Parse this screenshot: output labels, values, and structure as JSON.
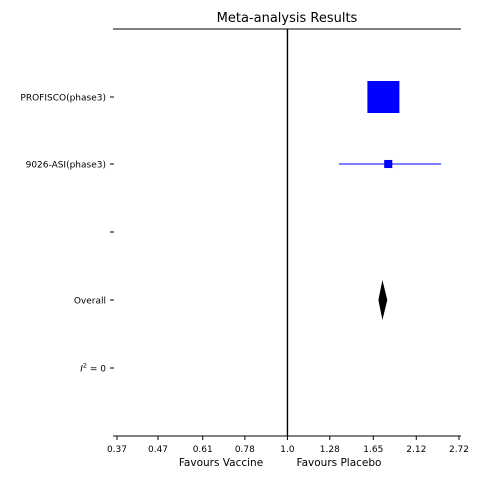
{
  "chart_data": {
    "type": "forest",
    "title": "Meta-analysis Results",
    "x_scale": "log",
    "xlim": [
      0.37,
      2.72
    ],
    "x_ticks": [
      0.37,
      0.47,
      0.61,
      0.78,
      1.0,
      1.28,
      1.65,
      2.12,
      2.72
    ],
    "x_tick_labels": [
      "0.37",
      "0.47",
      "0.61",
      "0.78",
      "1.0",
      "1.28",
      "1.65",
      "2.12",
      "2.72"
    ],
    "null_value": 1.0,
    "xlabel_left": "Favours Vaccine",
    "xlabel_right": "Favours Placebo",
    "studies": [
      {
        "label": "PROFISCO(phase3)",
        "estimate": 1.75,
        "ci_low": 1.75,
        "ci_high": 1.75,
        "weight": 1.0,
        "color": "#0000ff"
      },
      {
        "label": "9026-ASI(phase3)",
        "estimate": 1.8,
        "ci_low": 1.35,
        "ci_high": 2.45,
        "weight": 0.08,
        "color": "#0000ff"
      }
    ],
    "blank_row_label": "",
    "overall": {
      "label": "Overall",
      "estimate": 1.74,
      "ci_low": 1.7,
      "ci_high": 1.79,
      "color": "#000000"
    },
    "heterogeneity": {
      "symbol": "I",
      "superscript": "2",
      "text": " = 0"
    }
  }
}
